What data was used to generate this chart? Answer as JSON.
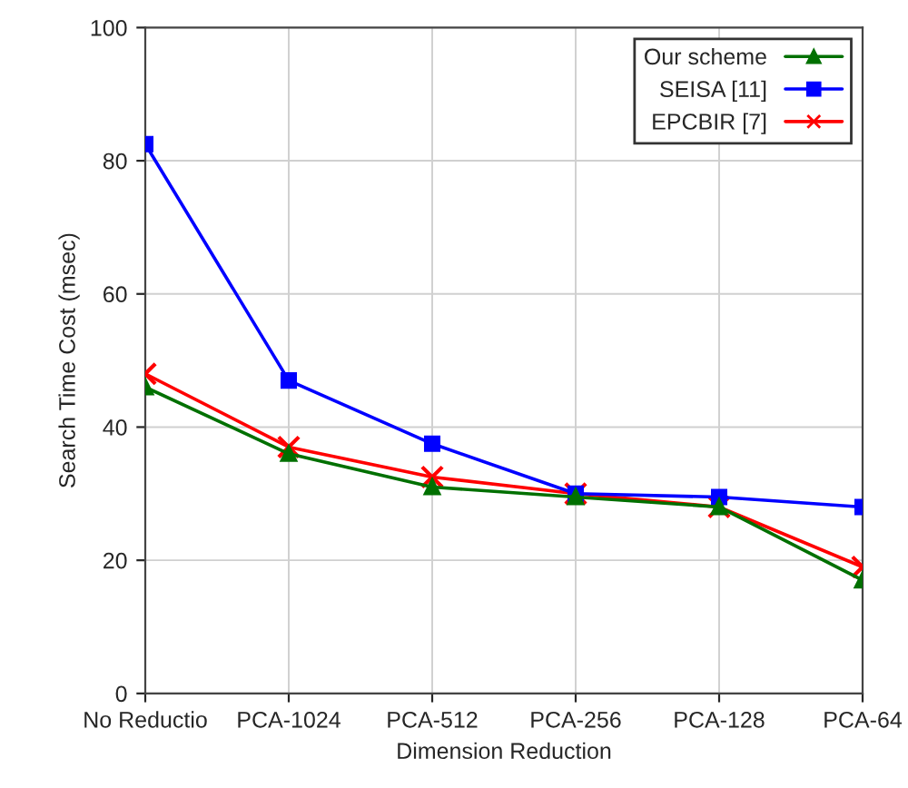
{
  "chart_data": {
    "type": "line",
    "xlabel": "Dimension Reduction",
    "ylabel": "Search Time Cost (msec)",
    "categories": [
      "No Reductio",
      "PCA-1024",
      "PCA-512",
      "PCA-256",
      "PCA-128",
      "PCA-64"
    ],
    "series": [
      {
        "name": "Our scheme",
        "color": "#007000",
        "marker": "triangle",
        "values": [
          46,
          36,
          31,
          29.5,
          28,
          17
        ]
      },
      {
        "name": "SEISA [11]",
        "color": "#0000ff",
        "marker": "square",
        "values": [
          82.5,
          47,
          37.5,
          30,
          29.5,
          28
        ]
      },
      {
        "name": "EPCBIR [7]",
        "color": "#ff0000",
        "marker": "cross",
        "values": [
          48,
          37,
          32.5,
          30,
          28,
          19
        ]
      }
    ],
    "ylim": [
      0,
      100
    ],
    "yticks": [
      0,
      20,
      40,
      60,
      80,
      100
    ],
    "grid": true,
    "legend": "top right",
    "line_style": "solid"
  }
}
